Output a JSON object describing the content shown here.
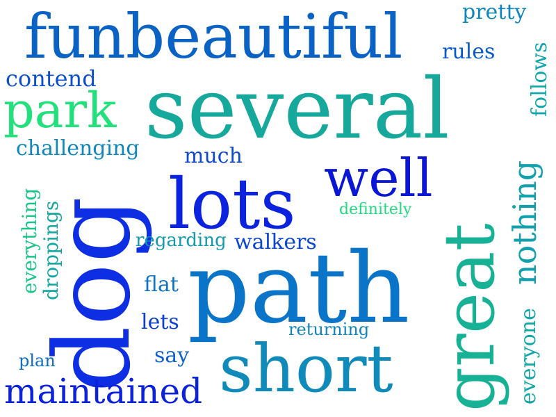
{
  "words": [
    {
      "text": "funbeautiful",
      "color": "#0a63c4"
    },
    {
      "text": "several",
      "color": "#16a89a"
    },
    {
      "text": "path",
      "color": "#0a74c9"
    },
    {
      "text": "dog",
      "color": "#0d2ee3"
    },
    {
      "text": "lots",
      "color": "#0b22de"
    },
    {
      "text": "short",
      "color": "#0f8ab9"
    },
    {
      "text": "great",
      "color": "#17b295"
    },
    {
      "text": "park",
      "color": "#22e07c"
    },
    {
      "text": "well",
      "color": "#0a16d6"
    },
    {
      "text": "maintained",
      "color": "#0d23d8"
    },
    {
      "text": "nothing",
      "color": "#11a0ac"
    },
    {
      "text": "contend",
      "color": "#0d4fcc"
    },
    {
      "text": "challenging",
      "color": "#0f86be"
    },
    {
      "text": "pretty",
      "color": "#0e86bd"
    },
    {
      "text": "rules",
      "color": "#0a59c8"
    },
    {
      "text": "follows",
      "color": "#12a5a9"
    },
    {
      "text": "much",
      "color": "#0e49cc"
    },
    {
      "text": "walkers",
      "color": "#0b45d2"
    },
    {
      "text": "regarding",
      "color": "#129aae"
    },
    {
      "text": "definitely",
      "color": "#20db7f"
    },
    {
      "text": "everything",
      "color": "#1bc487"
    },
    {
      "text": "droppings",
      "color": "#14a6a2"
    },
    {
      "text": "flat",
      "color": "#0f73c2"
    },
    {
      "text": "lets",
      "color": "#0b40d0"
    },
    {
      "text": "say",
      "color": "#0e61c8"
    },
    {
      "text": "plan",
      "color": "#0f6cc4"
    },
    {
      "text": "returning",
      "color": "#1083ba"
    },
    {
      "text": "everyone",
      "color": "#13a6a6"
    }
  ]
}
